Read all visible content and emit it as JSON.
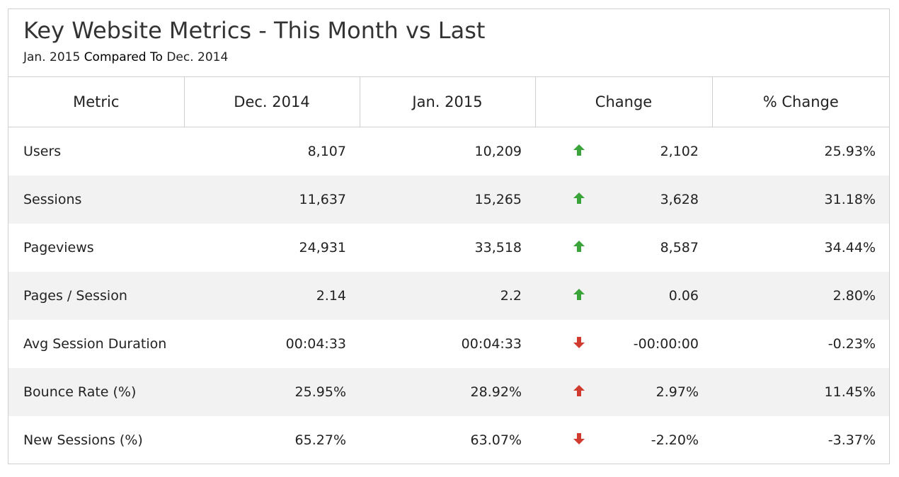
{
  "header": {
    "title": "Key Website Metrics - This Month vs Last",
    "subtitle_start": "Jan. 2015",
    "subtitle_mid": "Compared To",
    "subtitle_end": "Dec. 2014"
  },
  "table": {
    "columns": [
      "Metric",
      "Dec. 2014",
      "Jan. 2015",
      "Change",
      "% Change"
    ],
    "rows": [
      {
        "metric": "Users",
        "prev": "8,107",
        "curr": "10,209",
        "direction": "up",
        "arrow_color": "#3aa33a",
        "change": "2,102",
        "pct": "25.93%"
      },
      {
        "metric": "Sessions",
        "prev": "11,637",
        "curr": "15,265",
        "direction": "up",
        "arrow_color": "#3aa33a",
        "change": "3,628",
        "pct": "31.18%"
      },
      {
        "metric": "Pageviews",
        "prev": "24,931",
        "curr": "33,518",
        "direction": "up",
        "arrow_color": "#3aa33a",
        "change": "8,587",
        "pct": "34.44%"
      },
      {
        "metric": "Pages / Session",
        "prev": "2.14",
        "curr": "2.2",
        "direction": "up",
        "arrow_color": "#3aa33a",
        "change": "0.06",
        "pct": "2.80%"
      },
      {
        "metric": "Avg Session Duration",
        "prev": "00:04:33",
        "curr": "00:04:33",
        "direction": "down",
        "arrow_color": "#d03a2f",
        "change": "-00:00:00",
        "pct": "-0.23%"
      },
      {
        "metric": "Bounce Rate (%)",
        "prev": "25.95%",
        "curr": "28.92%",
        "direction": "up",
        "arrow_color": "#d03a2f",
        "change": "2.97%",
        "pct": "11.45%"
      },
      {
        "metric": "New Sessions (%)",
        "prev": "65.27%",
        "curr": "63.07%",
        "direction": "down",
        "arrow_color": "#d03a2f",
        "change": "-2.20%",
        "pct": "-3.37%"
      }
    ]
  },
  "colors": {
    "arrow_good": "#3aa33a",
    "arrow_bad": "#d03a2f",
    "border": "#cfcfcf",
    "row_stripe": "#f2f2f2"
  }
}
